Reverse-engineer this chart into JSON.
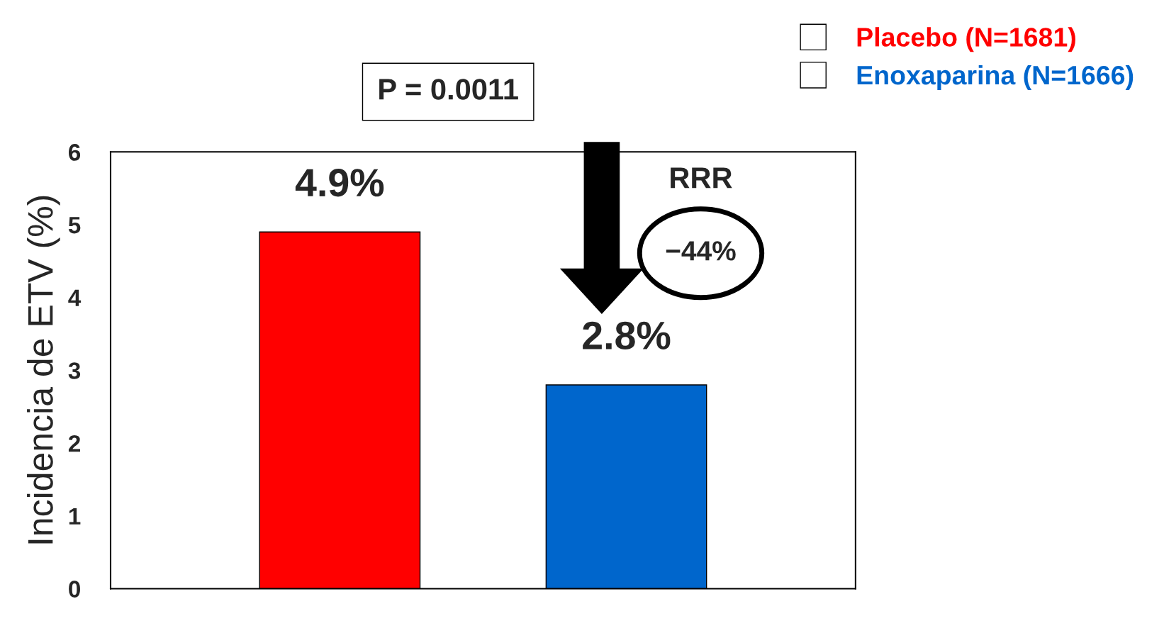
{
  "chart_data": {
    "type": "bar",
    "ylabel": "Incidencia de ETV (%)",
    "categories": [
      null,
      null
    ],
    "series": [
      {
        "name": "Placebo (N=1681)",
        "color": "#ff0000",
        "values": [
          4.9,
          null
        ],
        "value_labels": [
          "4.9%",
          null
        ]
      },
      {
        "name": "Enoxaparina (N=1666)",
        "color": "#0066cc",
        "values": [
          null,
          2.8
        ],
        "value_labels": [
          null,
          "2.8%"
        ]
      }
    ],
    "ylim": [
      0,
      6
    ],
    "yticks": [
      0,
      1,
      2,
      3,
      4,
      5,
      6
    ],
    "grid": false,
    "legend": "top right",
    "annotations": [
      "P = 0.0011",
      "RRR",
      "−44%"
    ]
  }
}
